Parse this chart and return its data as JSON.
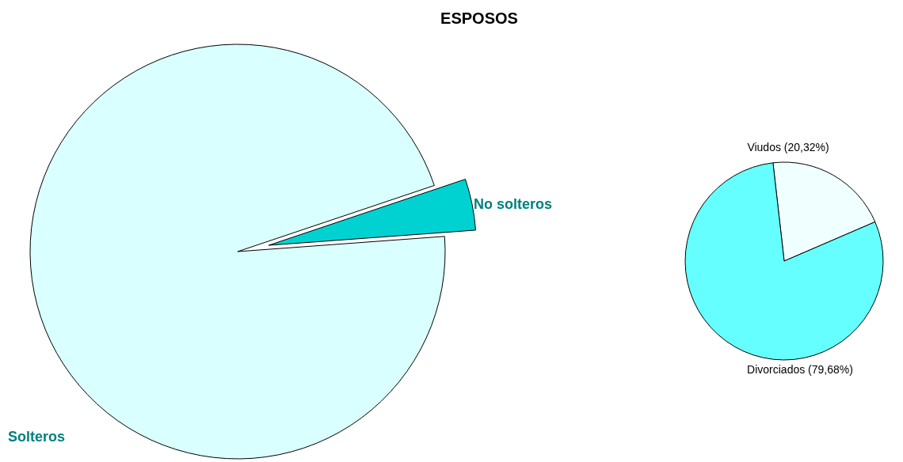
{
  "chart_data": [
    {
      "type": "pie",
      "title": "ESPOSOS",
      "categories": [
        "Solteros",
        "No solteros"
      ],
      "values": [
        96,
        4
      ],
      "colors": [
        "#d9ffff",
        "#00d2d2"
      ]
    },
    {
      "type": "pie",
      "categories": [
        "Viudos",
        "Divorciados"
      ],
      "values": [
        20.32,
        79.68
      ],
      "value_labels": [
        "(20,32%)",
        "(79,68%)"
      ],
      "colors": [
        "#f0ffff",
        "#66ffff"
      ]
    }
  ]
}
